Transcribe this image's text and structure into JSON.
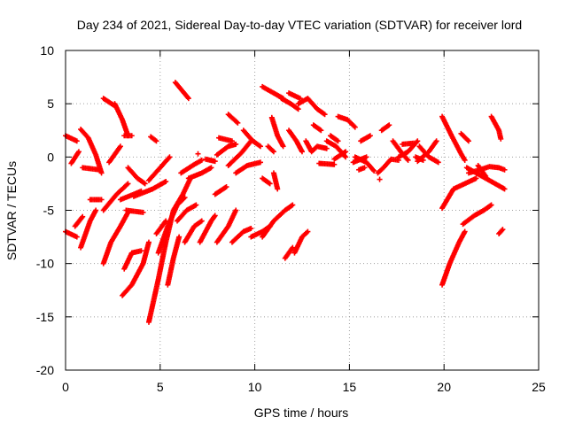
{
  "chart_data": {
    "type": "scatter",
    "title": "Day 234 of 2021, Sidereal Day-to-day VTEC variation (SDTVAR) for receiver lord",
    "xlabel": "GPS time / hours",
    "ylabel": "SDTVAR / TECUs",
    "xlim": [
      0,
      25
    ],
    "ylim": [
      -20,
      10
    ],
    "xticks": [
      0,
      5,
      10,
      15,
      20,
      25
    ],
    "yticks": [
      -20,
      -15,
      -10,
      -5,
      0,
      5,
      10
    ],
    "xtick_labels": [
      "0",
      "5",
      "10",
      "15",
      "20",
      "25"
    ],
    "ytick_labels": [
      "-20",
      "-15",
      "-10",
      "-5",
      "0",
      "5",
      "10"
    ],
    "grid": true,
    "marker": "+",
    "color": "#ff0000",
    "segments": [
      [
        [
          0.0,
          2.0
        ],
        [
          0.6,
          1.5
        ]
      ],
      [
        [
          0.3,
          -0.6
        ],
        [
          0.7,
          0.5
        ]
      ],
      [
        [
          0.0,
          -7.0
        ],
        [
          0.6,
          -7.5
        ]
      ],
      [
        [
          0.5,
          -6.5
        ],
        [
          0.9,
          -5.6
        ]
      ],
      [
        [
          0.8,
          2.6
        ],
        [
          1.2,
          1.8
        ],
        [
          1.6,
          0.2
        ],
        [
          1.9,
          -1.5
        ]
      ],
      [
        [
          0.8,
          -8.5
        ],
        [
          1.3,
          -6.0
        ],
        [
          1.6,
          -5.0
        ]
      ],
      [
        [
          0.9,
          -1.0
        ],
        [
          1.8,
          -1.2
        ]
      ],
      [
        [
          1.3,
          -4.0
        ],
        [
          1.9,
          -4.0
        ]
      ],
      [
        [
          2.0,
          5.5
        ],
        [
          2.6,
          4.8
        ]
      ],
      [
        [
          2.6,
          5.0
        ],
        [
          3.0,
          3.5
        ],
        [
          3.3,
          2.0
        ]
      ],
      [
        [
          2.3,
          -0.5
        ],
        [
          2.9,
          1.0
        ]
      ],
      [
        [
          2.0,
          -10.0
        ],
        [
          2.4,
          -8.0
        ],
        [
          2.9,
          -6.5
        ],
        [
          3.3,
          -5.2
        ]
      ],
      [
        [
          2.0,
          -5.0
        ],
        [
          2.7,
          -3.5
        ],
        [
          3.3,
          -2.5
        ]
      ],
      [
        [
          3.1,
          2.0
        ],
        [
          3.5,
          2.0
        ]
      ],
      [
        [
          2.9,
          -4.0
        ],
        [
          3.6,
          -3.5
        ],
        [
          4.0,
          -3.2
        ]
      ],
      [
        [
          3.0,
          -13.0
        ],
        [
          3.5,
          -12.0
        ],
        [
          4.1,
          -10.0
        ],
        [
          4.4,
          -8.0
        ]
      ],
      [
        [
          3.1,
          -10.5
        ],
        [
          3.5,
          -9.0
        ],
        [
          4.0,
          -8.8
        ]
      ],
      [
        [
          3.2,
          -5.0
        ],
        [
          4.1,
          -5.2
        ]
      ],
      [
        [
          3.3,
          -1.0
        ],
        [
          3.8,
          -2.0
        ],
        [
          4.2,
          -2.5
        ]
      ],
      [
        [
          3.6,
          -3.7
        ],
        [
          4.6,
          -3.0
        ],
        [
          5.3,
          -2.3
        ]
      ],
      [
        [
          4.4,
          -2.2
        ],
        [
          5.0,
          -1.0
        ],
        [
          5.5,
          0.0
        ]
      ],
      [
        [
          4.5,
          1.9
        ],
        [
          4.8,
          1.5
        ]
      ],
      [
        [
          4.4,
          -15.5
        ],
        [
          4.9,
          -11.5
        ],
        [
          5.3,
          -8.0
        ],
        [
          5.7,
          -5.0
        ],
        [
          6.2,
          -3.5
        ],
        [
          6.6,
          -2.0
        ]
      ],
      [
        [
          4.8,
          -7.2
        ],
        [
          5.3,
          -6.0
        ]
      ],
      [
        [
          4.9,
          -9.0
        ],
        [
          5.4,
          -6.5
        ],
        [
          5.9,
          -4.5
        ],
        [
          6.3,
          -3.8
        ]
      ],
      [
        [
          5.4,
          -12.0
        ],
        [
          5.7,
          -9.5
        ],
        [
          6.0,
          -7.5
        ]
      ],
      [
        [
          5.8,
          7.0
        ],
        [
          6.5,
          5.5
        ]
      ],
      [
        [
          5.9,
          -6.0
        ],
        [
          6.4,
          -5.0
        ],
        [
          6.9,
          -4.5
        ]
      ],
      [
        [
          6.1,
          -1.5
        ],
        [
          6.8,
          -0.7
        ],
        [
          7.2,
          -0.3
        ]
      ],
      [
        [
          6.3,
          -8.0
        ],
        [
          6.8,
          -6.5
        ],
        [
          7.2,
          -6.0
        ]
      ],
      [
        [
          6.5,
          -2.0
        ],
        [
          7.2,
          -1.5
        ],
        [
          7.7,
          -1.0
        ]
      ],
      [
        [
          7.1,
          -8.0
        ],
        [
          7.7,
          -6.0
        ],
        [
          7.9,
          -5.5
        ]
      ],
      [
        [
          7.4,
          -0.2
        ],
        [
          7.9,
          -0.4
        ]
      ],
      [
        [
          7.9,
          -3.5
        ],
        [
          8.5,
          -2.8
        ]
      ],
      [
        [
          8.0,
          0.2
        ],
        [
          8.6,
          1.0
        ],
        [
          9.0,
          1.2
        ]
      ],
      [
        [
          8.0,
          -8.0
        ],
        [
          8.6,
          -6.5
        ],
        [
          9.0,
          -5.0
        ]
      ],
      [
        [
          8.1,
          1.8
        ],
        [
          8.8,
          1.5
        ]
      ],
      [
        [
          8.6,
          4.0
        ],
        [
          9.1,
          3.2
        ]
      ],
      [
        [
          8.6,
          -0.8
        ],
        [
          9.3,
          0.4
        ],
        [
          9.8,
          1.5
        ]
      ],
      [
        [
          8.8,
          -8.0
        ],
        [
          9.4,
          -7.0
        ],
        [
          9.8,
          -6.7
        ]
      ],
      [
        [
          9.0,
          -1.5
        ],
        [
          9.6,
          -0.8
        ],
        [
          10.3,
          -0.5
        ]
      ],
      [
        [
          9.4,
          2.5
        ],
        [
          9.9,
          1.5
        ],
        [
          10.3,
          1.0
        ]
      ],
      [
        [
          9.8,
          -7.5
        ],
        [
          10.4,
          -7.0
        ],
        [
          10.8,
          -6.5
        ]
      ],
      [
        [
          10.4,
          6.6
        ],
        [
          11.0,
          6.0
        ],
        [
          11.5,
          5.5
        ]
      ],
      [
        [
          10.4,
          -7.5
        ],
        [
          11.0,
          -6.0
        ],
        [
          11.6,
          -5.0
        ],
        [
          12.0,
          -4.5
        ]
      ],
      [
        [
          10.4,
          -2.0
        ],
        [
          10.8,
          -2.5
        ]
      ],
      [
        [
          10.7,
          1.0
        ],
        [
          11.0,
          0.5
        ]
      ],
      [
        [
          11.0,
          -1.5
        ],
        [
          11.2,
          -3.0
        ]
      ],
      [
        [
          10.9,
          3.7
        ],
        [
          11.2,
          2.0
        ],
        [
          11.5,
          1.0
        ]
      ],
      [
        [
          11.4,
          5.5
        ],
        [
          11.9,
          5.0
        ],
        [
          12.3,
          4.5
        ]
      ],
      [
        [
          11.6,
          -9.5
        ],
        [
          12.0,
          -8.5
        ]
      ],
      [
        [
          11.8,
          6.0
        ],
        [
          12.4,
          5.5
        ]
      ],
      [
        [
          11.8,
          2.5
        ],
        [
          12.2,
          1.5
        ],
        [
          12.5,
          0.5
        ]
      ],
      [
        [
          12.1,
          -9.0
        ],
        [
          12.5,
          -7.5
        ],
        [
          12.8,
          -7.0
        ]
      ],
      [
        [
          12.3,
          5.0
        ],
        [
          12.8,
          5.5
        ],
        [
          13.3,
          4.5
        ],
        [
          13.7,
          4.0
        ]
      ],
      [
        [
          12.7,
          1.5
        ],
        [
          13.0,
          0.5
        ],
        [
          13.3,
          1.0
        ],
        [
          13.8,
          0.8
        ]
      ],
      [
        [
          13.1,
          3.0
        ],
        [
          13.5,
          2.5
        ]
      ],
      [
        [
          13.4,
          -0.6
        ],
        [
          14.2,
          -0.7
        ]
      ],
      [
        [
          13.8,
          1.5
        ],
        [
          14.3,
          1.0
        ],
        [
          14.8,
          0.0
        ]
      ],
      [
        [
          14.0,
          2.0
        ],
        [
          14.4,
          1.5
        ]
      ],
      [
        [
          14.4,
          3.8
        ],
        [
          14.9,
          3.5
        ],
        [
          15.3,
          2.8
        ]
      ],
      [
        [
          14.2,
          -0.2
        ],
        [
          14.8,
          0.5
        ]
      ],
      [
        [
          15.2,
          -0.5
        ],
        [
          15.9,
          0.0
        ]
      ],
      [
        [
          15.5,
          -1.2
        ],
        [
          15.8,
          -1.0
        ]
      ],
      [
        [
          15.3,
          0.0
        ],
        [
          15.9,
          -0.5
        ],
        [
          16.3,
          -1.3
        ]
      ],
      [
        [
          15.6,
          1.5
        ],
        [
          16.1,
          2.0
        ]
      ],
      [
        [
          16.5,
          -1.5
        ],
        [
          16.8,
          -1.0
        ],
        [
          17.2,
          -0.2
        ],
        [
          17.6,
          -0.3
        ]
      ],
      [
        [
          16.7,
          2.5
        ],
        [
          17.1,
          3.0
        ]
      ],
      [
        [
          17.3,
          1.5
        ],
        [
          17.8,
          0.3
        ],
        [
          18.1,
          -0.3
        ]
      ],
      [
        [
          17.6,
          0.0
        ],
        [
          18.1,
          0.5
        ],
        [
          18.6,
          1.5
        ]
      ],
      [
        [
          17.8,
          1.2
        ],
        [
          18.4,
          1.3
        ]
      ],
      [
        [
          18.5,
          0.0
        ],
        [
          18.9,
          -0.3
        ]
      ],
      [
        [
          18.6,
          -0.4
        ],
        [
          19.2,
          0.5
        ],
        [
          19.6,
          1.5
        ]
      ],
      [
        [
          18.7,
          1.0
        ],
        [
          19.2,
          0.0
        ],
        [
          19.7,
          -0.5
        ]
      ],
      [
        [
          19.9,
          3.8
        ],
        [
          20.4,
          2.0
        ],
        [
          20.9,
          0.3
        ],
        [
          21.1,
          -0.3
        ]
      ],
      [
        [
          19.9,
          -12.0
        ],
        [
          20.3,
          -10.0
        ],
        [
          20.8,
          -8.0
        ],
        [
          21.1,
          -7.0
        ]
      ],
      [
        [
          19.9,
          -4.8
        ],
        [
          20.5,
          -3.0
        ],
        [
          21.1,
          -2.5
        ],
        [
          21.7,
          -2.0
        ]
      ],
      [
        [
          20.9,
          2.2
        ],
        [
          21.3,
          1.5
        ]
      ],
      [
        [
          21.2,
          -1.0
        ],
        [
          21.7,
          -1.5
        ],
        [
          22.2,
          -2.0
        ],
        [
          22.7,
          -2.5
        ],
        [
          23.2,
          -3.0
        ]
      ],
      [
        [
          21.3,
          -1.5
        ],
        [
          21.9,
          -1.2
        ],
        [
          22.4,
          -0.9
        ],
        [
          22.9,
          -1.0
        ],
        [
          23.2,
          -1.2
        ]
      ],
      [
        [
          21.0,
          -6.3
        ],
        [
          21.6,
          -5.5
        ],
        [
          22.1,
          -5.0
        ],
        [
          22.5,
          -4.5
        ]
      ],
      [
        [
          21.8,
          -0.8
        ],
        [
          22.2,
          -1.8
        ]
      ],
      [
        [
          22.5,
          3.8
        ],
        [
          22.9,
          2.5
        ],
        [
          23.0,
          1.7
        ]
      ],
      [
        [
          22.9,
          -7.2
        ],
        [
          23.1,
          -6.8
        ]
      ],
      [
        [
          7.0,
          0.3
        ],
        [
          7.0,
          0.3
        ]
      ],
      [
        [
          16.6,
          -2.1
        ],
        [
          16.6,
          -2.1
        ]
      ]
    ]
  }
}
